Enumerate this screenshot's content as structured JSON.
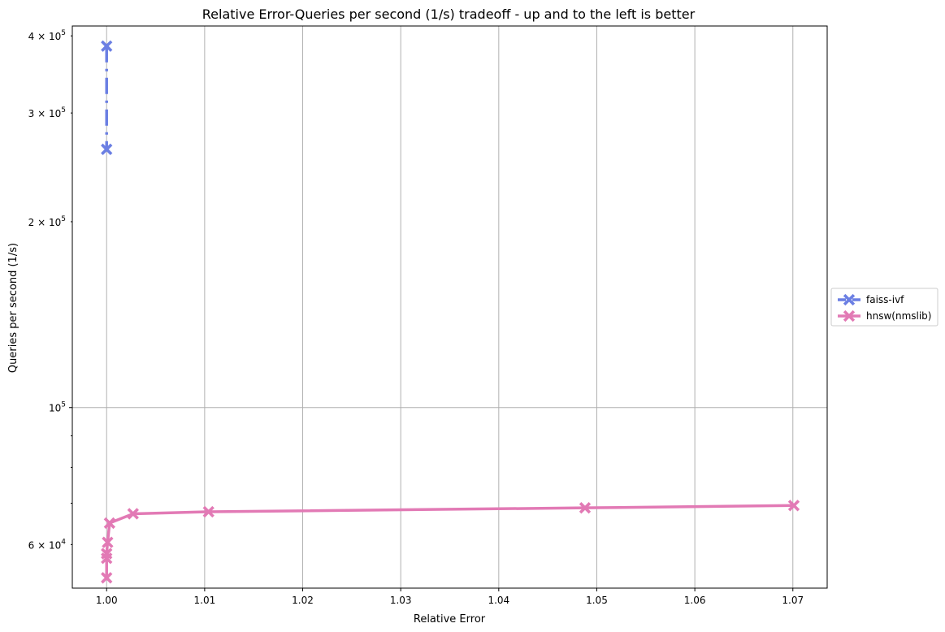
{
  "chart_data": {
    "type": "line",
    "title": "Relative Error-Queries per second (1/s) tradeoff - up and to the left is better",
    "xlabel": "Relative Error",
    "ylabel": "Queries per second (1/s)",
    "xlim": [
      0.9965,
      1.0735
    ],
    "ylim": [
      51000,
      415000
    ],
    "yscale": "log",
    "grid": true,
    "legend_position": "right",
    "x_ticks": [
      {
        "value": 1.0,
        "label": "1.00"
      },
      {
        "value": 1.01,
        "label": "1.01"
      },
      {
        "value": 1.02,
        "label": "1.02"
      },
      {
        "value": 1.03,
        "label": "1.03"
      },
      {
        "value": 1.04,
        "label": "1.04"
      },
      {
        "value": 1.05,
        "label": "1.05"
      },
      {
        "value": 1.06,
        "label": "1.06"
      },
      {
        "value": 1.07,
        "label": "1.07"
      }
    ],
    "y_major_ticks": [
      {
        "value": 100000,
        "base": "10",
        "exp": "5"
      }
    ],
    "y_minor_ticks": [
      {
        "value": 60000,
        "mant": "6",
        "base": "10",
        "exp": "4"
      },
      {
        "value": 200000,
        "mant": "2",
        "base": "10",
        "exp": "5"
      },
      {
        "value": 300000,
        "mant": "3",
        "base": "10",
        "exp": "5"
      },
      {
        "value": 400000,
        "mant": "4",
        "base": "10",
        "exp": "5"
      },
      {
        "value": 70000,
        "mant": "",
        "base": "",
        "exp": ""
      },
      {
        "value": 80000,
        "mant": "",
        "base": "",
        "exp": ""
      },
      {
        "value": 90000,
        "mant": "",
        "base": "",
        "exp": ""
      }
    ],
    "series": [
      {
        "name": "faiss-ivf",
        "color": "#6b7fe3",
        "dash": "dashdot",
        "points": [
          {
            "x": 1.0,
            "y": 385000
          },
          {
            "x": 1.0,
            "y": 262000
          }
        ]
      },
      {
        "name": "hnsw(nmslib)",
        "color": "#e27ab5",
        "dash": "solid",
        "points": [
          {
            "x": 1.0,
            "y": 53000
          },
          {
            "x": 1.0,
            "y": 57000
          },
          {
            "x": 1.0,
            "y": 58000
          },
          {
            "x": 1.0001,
            "y": 60500
          },
          {
            "x": 1.0003,
            "y": 65000
          },
          {
            "x": 1.0027,
            "y": 67300
          },
          {
            "x": 1.0104,
            "y": 67800
          },
          {
            "x": 1.0488,
            "y": 68800
          },
          {
            "x": 1.0701,
            "y": 69400
          }
        ]
      }
    ]
  }
}
